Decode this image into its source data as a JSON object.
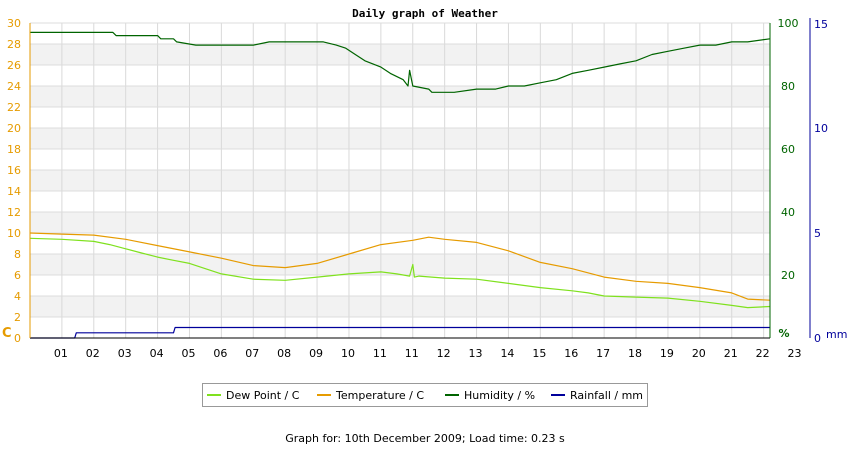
{
  "chart_data": {
    "type": "line",
    "title": "Daily graph of Weather",
    "x_tick_labels": [
      "01",
      "02",
      "03",
      "04",
      "05",
      "06",
      "07",
      "08",
      "09",
      "10",
      "11",
      "11",
      "12",
      "13",
      "14",
      "15",
      "16",
      "17",
      "18",
      "19",
      "20",
      "21",
      "22",
      "23"
    ],
    "left_axis": {
      "label": "C",
      "ylim": [
        0,
        30
      ],
      "ticks": [
        0,
        2,
        4,
        6,
        8,
        10,
        12,
        14,
        16,
        18,
        20,
        22,
        24,
        26,
        28,
        30
      ],
      "color": "#e69b00"
    },
    "right_axis_humidity": {
      "label": "%",
      "ylim": [
        0,
        100
      ],
      "ticks": [
        0,
        20,
        40,
        60,
        80,
        100
      ],
      "color": "#006400"
    },
    "right_axis_rain": {
      "label": "mm",
      "ylim": [
        0,
        15
      ],
      "ticks": [
        0,
        5,
        10,
        15
      ],
      "color": "#00009b"
    },
    "xlim": [
      0,
      23.2
    ],
    "grid": true,
    "series": [
      {
        "name": "Dew Point / C",
        "axis": "left",
        "color": "#7fe11e",
        "x": [
          0,
          1,
          2,
          2.5,
          3,
          3.5,
          4,
          4.5,
          5,
          5.5,
          6,
          7,
          8,
          9,
          10,
          11,
          11.5,
          11.9,
          12.0,
          12.05,
          12.2,
          13,
          14,
          15,
          16,
          17,
          17.5,
          18,
          19,
          20,
          21,
          22,
          22.5,
          23.2
        ],
        "y": [
          9.5,
          9.4,
          9.2,
          8.9,
          8.5,
          8.1,
          7.7,
          7.4,
          7.1,
          6.6,
          6.1,
          5.6,
          5.5,
          5.8,
          6.1,
          6.3,
          6.1,
          5.9,
          7.0,
          5.8,
          5.9,
          5.7,
          5.6,
          5.2,
          4.8,
          4.5,
          4.3,
          4.0,
          3.9,
          3.8,
          3.5,
          3.1,
          2.9,
          3.0
        ]
      },
      {
        "name": "Temperature / C",
        "axis": "left",
        "color": "#e69b00",
        "x": [
          0,
          1,
          2,
          3,
          4,
          5,
          6,
          7,
          8,
          9,
          10,
          11,
          12,
          12.5,
          13,
          14,
          15,
          16,
          17,
          18,
          19,
          20,
          21,
          22,
          22.5,
          23.2
        ],
        "y": [
          10.0,
          9.9,
          9.8,
          9.4,
          8.8,
          8.2,
          7.6,
          6.9,
          6.7,
          7.1,
          8.0,
          8.9,
          9.3,
          9.6,
          9.4,
          9.1,
          8.3,
          7.2,
          6.6,
          5.8,
          5.4,
          5.2,
          4.8,
          4.3,
          3.7,
          3.6
        ]
      },
      {
        "name": "Humidity / %",
        "axis": "right_humidity",
        "color": "#006400",
        "x": [
          0,
          1.4,
          1.5,
          2.6,
          2.7,
          4.0,
          4.1,
          4.5,
          4.6,
          5.2,
          5.8,
          6.4,
          7.0,
          7.5,
          8.0,
          8.5,
          9.2,
          9.6,
          9.9,
          10.2,
          10.5,
          11.0,
          11.3,
          11.7,
          11.85,
          11.9,
          12.0,
          12.5,
          12.6,
          13.3,
          14.0,
          14.6,
          15.0,
          15.5,
          16.0,
          16.5,
          17.0,
          17.5,
          18.0,
          18.5,
          19.0,
          19.5,
          20.0,
          20.5,
          21.0,
          21.5,
          22.0,
          22.5,
          23.2
        ],
        "y": [
          97,
          97,
          97,
          97,
          96,
          96,
          95,
          95,
          94,
          93,
          93,
          93,
          93,
          94,
          94,
          94,
          94,
          93,
          92,
          90,
          88,
          86,
          84,
          82,
          80,
          85,
          80,
          79,
          78,
          78,
          79,
          79,
          80,
          80,
          81,
          82,
          84,
          85,
          86,
          87,
          88,
          90,
          91,
          92,
          93,
          93,
          94,
          94,
          95
        ]
      },
      {
        "name": "Rainfall / mm",
        "axis": "right_rain",
        "color": "#00009b",
        "x": [
          0,
          1.4,
          1.45,
          4.5,
          4.55,
          23.2
        ],
        "y": [
          0,
          0,
          0.25,
          0.25,
          0.5,
          0.5
        ]
      }
    ]
  },
  "footer": "Graph for: 10th December 2009; Load time: 0.23 s"
}
